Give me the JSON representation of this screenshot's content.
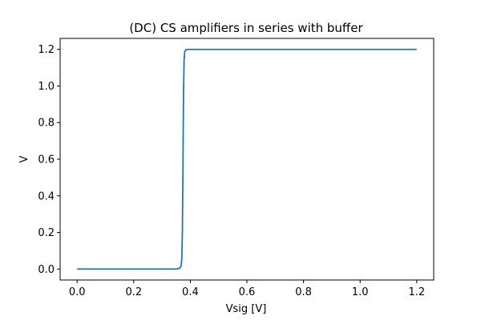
{
  "chart_data": {
    "type": "line",
    "title": "(DC) CS amplifiers in series with buffer",
    "xlabel": "Vsig [V]",
    "ylabel": "V",
    "xlim": [
      -0.06,
      1.26
    ],
    "ylim": [
      -0.06,
      1.26
    ],
    "xticks": [
      0.0,
      0.2,
      0.4,
      0.6,
      0.8,
      1.0,
      1.2
    ],
    "xtick_labels": [
      "0.0",
      "0.2",
      "0.4",
      "0.6",
      "0.8",
      "1.0",
      "1.2"
    ],
    "yticks": [
      0.0,
      0.2,
      0.4,
      0.6,
      0.8,
      1.0,
      1.2
    ],
    "ytick_labels": [
      "0.0",
      "0.2",
      "0.4",
      "0.6",
      "0.8",
      "1.0",
      "1.2"
    ],
    "grid": false,
    "color": "#1f77b4",
    "series": [
      {
        "x": [
          0.0,
          0.1,
          0.2,
          0.3,
          0.35,
          0.36,
          0.365,
          0.368,
          0.37,
          0.372,
          0.374,
          0.376,
          0.378,
          0.38,
          0.384,
          0.39,
          0.4,
          0.5,
          0.6,
          0.7,
          0.8,
          0.9,
          1.0,
          1.1,
          1.2
        ],
        "y": [
          0.0,
          0.0,
          0.0,
          0.0,
          0.0,
          0.003,
          0.008,
          0.02,
          0.06,
          0.2,
          0.55,
          0.95,
          1.14,
          1.185,
          1.197,
          1.2,
          1.2,
          1.2,
          1.2,
          1.2,
          1.2,
          1.2,
          1.2,
          1.2,
          1.2
        ]
      }
    ]
  }
}
